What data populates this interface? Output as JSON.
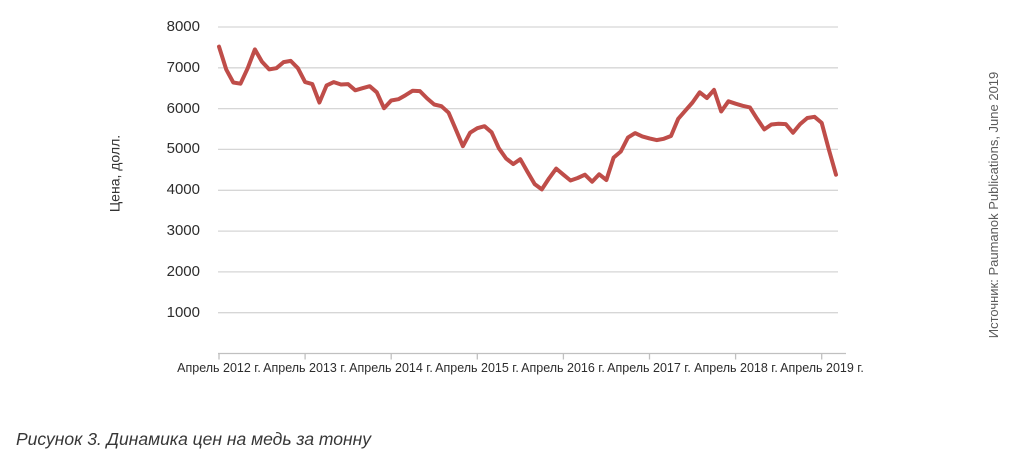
{
  "figure": {
    "caption": "Рисунок 3. Динамика цен на медь за тонну",
    "source": "Источник: Paumanok Publications, June 2019"
  },
  "chart_data": {
    "type": "line",
    "title": "",
    "xlabel": "",
    "ylabel": "Цена, долл.",
    "ylim": [
      0,
      8000
    ],
    "y_ticks": [
      1000,
      2000,
      3000,
      4000,
      5000,
      6000,
      7000,
      8000
    ],
    "x_tick_labels": [
      "Апрель 2012 г.",
      "Апрель 2013 г.",
      "Апрель 2014 г.",
      "Апрель 2015 г.",
      "Апрель 2016 г.",
      "Апрель 2017 г.",
      "Апрель 2018 г.",
      "Апрель 2019 г."
    ],
    "x_ticks_every_n_points": 12,
    "grid": "horizontal",
    "legend": "none",
    "line_color": "#bf4d49",
    "grid_color": "#d6d6d6",
    "axis_color": "#c0c0c0",
    "series": [
      {
        "frequency": "monthly",
        "start_month": "2012-04",
        "end_month": "2019-06",
        "values": [
          7520,
          6960,
          6640,
          6610,
          6990,
          7450,
          7150,
          6960,
          6990,
          7140,
          7170,
          6990,
          6650,
          6600,
          6150,
          6570,
          6650,
          6590,
          6600,
          6450,
          6500,
          6550,
          6400,
          6010,
          6200,
          6230,
          6330,
          6440,
          6430,
          6250,
          6100,
          6060,
          5900,
          5490,
          5080,
          5410,
          5520,
          5570,
          5420,
          5030,
          4780,
          4640,
          4760,
          4450,
          4150,
          4020,
          4290,
          4530,
          4380,
          4240,
          4300,
          4380,
          4210,
          4390,
          4250,
          4800,
          4950,
          5290,
          5400,
          5320,
          5270,
          5230,
          5260,
          5330,
          5750,
          5950,
          6150,
          6400,
          6260,
          6460,
          5930,
          6180,
          6120,
          6070,
          6030,
          5750,
          5490,
          5610,
          5630,
          5620,
          5410,
          5620,
          5770,
          5800,
          5650,
          5000,
          4380
        ]
      }
    ]
  }
}
